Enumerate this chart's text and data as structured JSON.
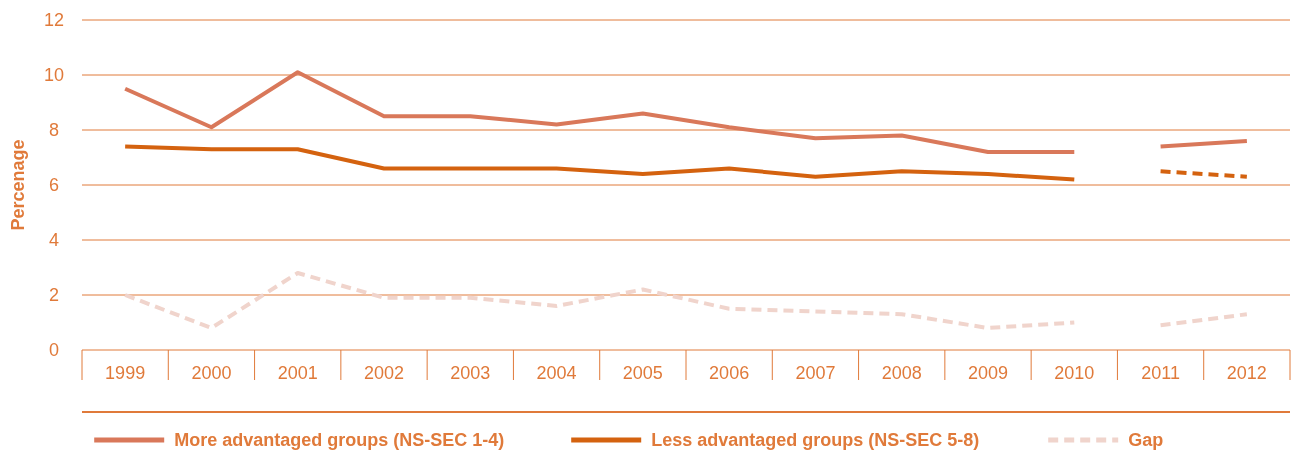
{
  "chart_data": {
    "type": "line",
    "ylabel": "Percenage",
    "categories": [
      "1999",
      "2000",
      "2001",
      "2002",
      "2003",
      "2004",
      "2005",
      "2006",
      "2007",
      "2008",
      "2009",
      "2010",
      "2011",
      "2012"
    ],
    "ylim": [
      0,
      12
    ],
    "yticks": [
      0,
      2,
      4,
      6,
      8,
      10,
      12
    ],
    "grid": "y",
    "legend": "bottom",
    "series": [
      {
        "name": "More advantaged groups (NS-SEC 1-4)",
        "color": "#d9785a",
        "line_style": "solid",
        "values": [
          9.5,
          8.1,
          10.1,
          8.5,
          8.5,
          8.2,
          8.6,
          8.1,
          7.7,
          7.8,
          7.2,
          7.2,
          null,
          null
        ]
      },
      {
        "name": "Less advantaged groups (NS-SEC 5-8)",
        "color": "#d4620f",
        "line_style": "solid",
        "values": [
          7.4,
          7.3,
          7.3,
          6.6,
          6.6,
          6.6,
          6.4,
          6.6,
          6.3,
          6.5,
          6.4,
          6.2,
          null,
          null
        ]
      },
      {
        "name": "Gap",
        "color": "#f0d4cc",
        "line_style": "dashed",
        "values": [
          2.0,
          0.8,
          2.8,
          1.9,
          1.9,
          1.6,
          2.2,
          1.5,
          1.4,
          1.3,
          0.8,
          1.0,
          null,
          null
        ]
      },
      {
        "color": "#d9785a",
        "line_style": "solid",
        "values": [
          null,
          null,
          null,
          null,
          null,
          null,
          null,
          null,
          null,
          null,
          null,
          null,
          7.4,
          7.6
        ]
      },
      {
        "color": "#d4620f",
        "line_style": "dashed",
        "values": [
          null,
          null,
          null,
          null,
          null,
          null,
          null,
          null,
          null,
          null,
          null,
          null,
          6.5,
          6.3
        ]
      },
      {
        "color": "#f0d4cc",
        "line_style": "dashed",
        "values": [
          null,
          null,
          null,
          null,
          null,
          null,
          null,
          null,
          null,
          null,
          null,
          null,
          0.9,
          1.3
        ]
      }
    ]
  }
}
